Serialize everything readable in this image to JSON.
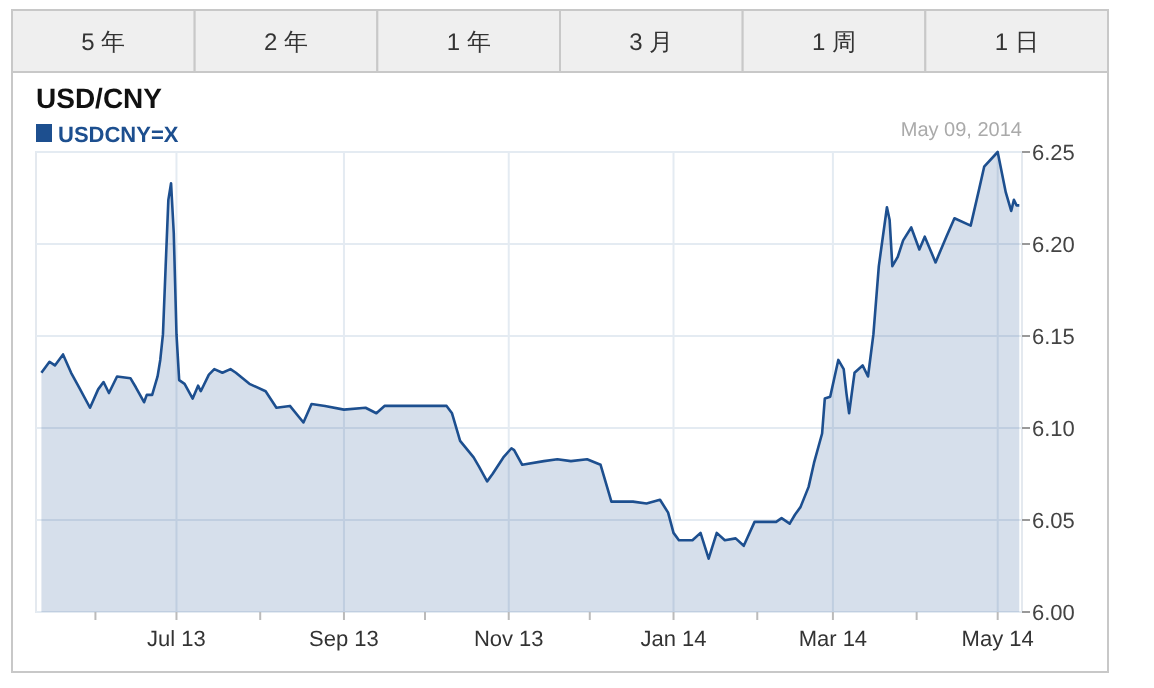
{
  "chart_data": {
    "type": "area",
    "title": "USD/CNY",
    "annotations": [
      "5 年",
      "2 年",
      "1 年",
      "3 月",
      "1 周",
      "1 日",
      "May 09, 2014"
    ],
    "series": [
      {
        "name": "USDCNY=X",
        "color": "#1d4f8f",
        "x": [
          "2013-05-12",
          "2013-05-15",
          "2013-05-17",
          "2013-05-20",
          "2013-05-23",
          "2013-05-26",
          "2013-05-30",
          "2013-06-02",
          "2013-06-04",
          "2013-06-06",
          "2013-06-09",
          "2013-06-14",
          "2013-06-16",
          "2013-06-19",
          "2013-06-20",
          "2013-06-22",
          "2013-06-24",
          "2013-06-25",
          "2013-06-26",
          "2013-06-27",
          "2013-06-28",
          "2013-06-29",
          "2013-06-30",
          "2013-07-01",
          "2013-07-02",
          "2013-07-04",
          "2013-07-07",
          "2013-07-09",
          "2013-07-10",
          "2013-07-13",
          "2013-07-15",
          "2013-07-18",
          "2013-07-21",
          "2013-07-23",
          "2013-07-28",
          "2013-08-03",
          "2013-08-07",
          "2013-08-12",
          "2013-08-17",
          "2013-08-20",
          "2013-08-25",
          "2013-09-01",
          "2013-09-09",
          "2013-09-13",
          "2013-09-16",
          "2013-09-26",
          "2013-10-01",
          "2013-10-09",
          "2013-10-11",
          "2013-10-14",
          "2013-10-19",
          "2013-10-21",
          "2013-10-24",
          "2013-10-26",
          "2013-10-30",
          "2013-11-02",
          "2013-11-03",
          "2013-11-06",
          "2013-11-14",
          "2013-11-19",
          "2013-11-24",
          "2013-11-30",
          "2013-12-05",
          "2013-12-09",
          "2013-12-17",
          "2013-12-22",
          "2013-12-27",
          "2013-12-30",
          "2014-01-01",
          "2014-01-03",
          "2014-01-08",
          "2014-01-11",
          "2014-01-14",
          "2014-01-17",
          "2014-01-20",
          "2014-01-24",
          "2014-01-27",
          "2014-01-31",
          "2014-02-08",
          "2014-02-10",
          "2014-02-13",
          "2014-02-15",
          "2014-02-17",
          "2014-02-20",
          "2014-02-22",
          "2014-02-25",
          "2014-02-26",
          "2014-02-28",
          "2014-03-03",
          "2014-03-05",
          "2014-03-06",
          "2014-03-07",
          "2014-03-09",
          "2014-03-12",
          "2014-03-14",
          "2014-03-16",
          "2014-03-18",
          "2014-03-21",
          "2014-03-22",
          "2014-03-23",
          "2014-03-25",
          "2014-03-27",
          "2014-03-30",
          "2014-04-02",
          "2014-04-04",
          "2014-04-08",
          "2014-04-12",
          "2014-04-15",
          "2014-04-21",
          "2014-04-24",
          "2014-04-26",
          "2014-05-01",
          "2014-05-04",
          "2014-05-06",
          "2014-05-07",
          "2014-05-08",
          "2014-05-09"
        ],
        "values": [
          6.13,
          6.136,
          6.134,
          6.14,
          6.13,
          6.122,
          6.111,
          6.121,
          6.125,
          6.119,
          6.128,
          6.127,
          6.122,
          6.114,
          6.118,
          6.118,
          6.128,
          6.137,
          6.151,
          6.188,
          6.224,
          6.233,
          6.206,
          6.151,
          6.126,
          6.124,
          6.116,
          6.123,
          6.12,
          6.129,
          6.132,
          6.13,
          6.132,
          6.13,
          6.124,
          6.12,
          6.111,
          6.112,
          6.103,
          6.113,
          6.112,
          6.11,
          6.111,
          6.108,
          6.112,
          6.112,
          6.112,
          6.112,
          6.108,
          6.093,
          6.084,
          6.079,
          6.071,
          6.075,
          6.084,
          6.089,
          6.088,
          6.08,
          6.082,
          6.083,
          6.082,
          6.083,
          6.08,
          6.06,
          6.06,
          6.059,
          6.061,
          6.054,
          6.043,
          6.039,
          6.039,
          6.043,
          6.029,
          6.043,
          6.039,
          6.04,
          6.036,
          6.049,
          6.049,
          6.051,
          6.048,
          6.053,
          6.057,
          6.068,
          6.081,
          6.097,
          6.116,
          6.117,
          6.137,
          6.132,
          6.119,
          6.108,
          6.13,
          6.134,
          6.128,
          6.151,
          6.188,
          6.22,
          6.213,
          6.188,
          6.193,
          6.202,
          6.209,
          6.197,
          6.204,
          6.19,
          6.204,
          6.214,
          6.21,
          6.229,
          6.242,
          6.25,
          6.228,
          6.218,
          6.224,
          6.221,
          6.221
        ]
      }
    ],
    "xlim": [
      "2013-05-10",
      "2014-05-10"
    ],
    "xticks": [
      {
        "value": "2013-06-01",
        "label": null
      },
      {
        "value": "2013-07-01",
        "label": "Jul 13"
      },
      {
        "value": "2013-08-01",
        "label": null
      },
      {
        "value": "2013-09-01",
        "label": "Sep 13"
      },
      {
        "value": "2013-10-01",
        "label": null
      },
      {
        "value": "2013-11-01",
        "label": "Nov 13"
      },
      {
        "value": "2013-12-01",
        "label": null
      },
      {
        "value": "2014-01-01",
        "label": "Jan 14"
      },
      {
        "value": "2014-02-01",
        "label": null
      },
      {
        "value": "2014-03-01",
        "label": "Mar 14"
      },
      {
        "value": "2014-04-01",
        "label": null
      },
      {
        "value": "2014-05-01",
        "label": "May 14"
      }
    ],
    "ylim": [
      6.0,
      6.25
    ],
    "yticks": [
      {
        "value": 6.0,
        "label": "6.00"
      },
      6.05,
      {
        "value": 6.1,
        "label": "6.10"
      },
      6.15,
      {
        "value": 6.2,
        "label": "6.20"
      },
      6.25
    ],
    "grid": true,
    "legend": "top left"
  }
}
